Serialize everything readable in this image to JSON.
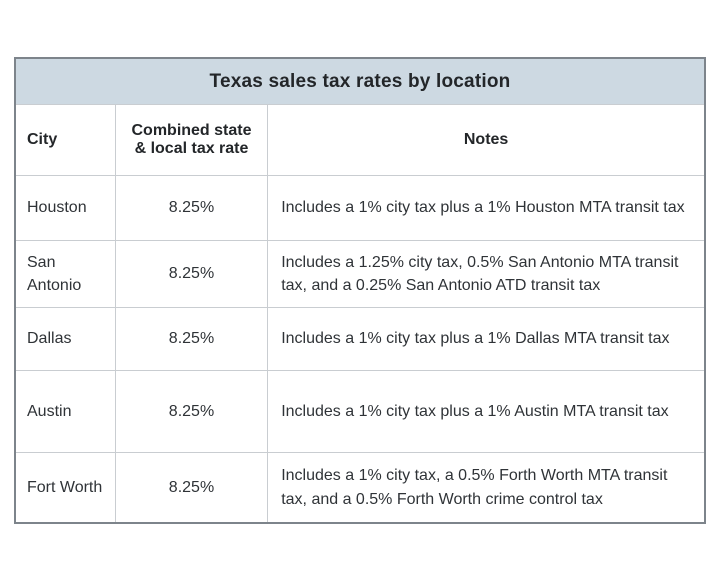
{
  "chart_data": {
    "type": "table",
    "title": "Texas sales tax rates by location",
    "columns": [
      "City",
      "Combined state & local tax rate",
      "Notes"
    ],
    "rows": [
      [
        "Houston",
        "8.25%",
        "Includes a 1% city tax plus a 1% Houston MTA transit tax"
      ],
      [
        "San Antonio",
        "8.25%",
        "Includes a 1.25% city tax, 0.5% San Antonio MTA transit tax, and a 0.25% San Antonio ATD transit tax"
      ],
      [
        "Dallas",
        "8.25%",
        "Includes a 1% city tax plus a 1% Dallas MTA transit tax"
      ],
      [
        "Austin",
        "8.25%",
        "Includes a 1% city tax plus a 1% Austin MTA transit tax"
      ],
      [
        "Fort Worth",
        "8.25%",
        "Includes a 1% city tax, a 0.5% Forth Worth MTA transit tax, and a 0.5% Forth Worth crime control tax"
      ]
    ],
    "layout_hints": {
      "title_position": "top-banner",
      "rate_alignment": "center",
      "grid": true
    }
  },
  "colors": {
    "title_background": "#cdd9e2",
    "outer_border": "#7d848b",
    "inner_border": "#c9cdd1",
    "text": "#2f3337",
    "page_background": "#ffffff"
  }
}
